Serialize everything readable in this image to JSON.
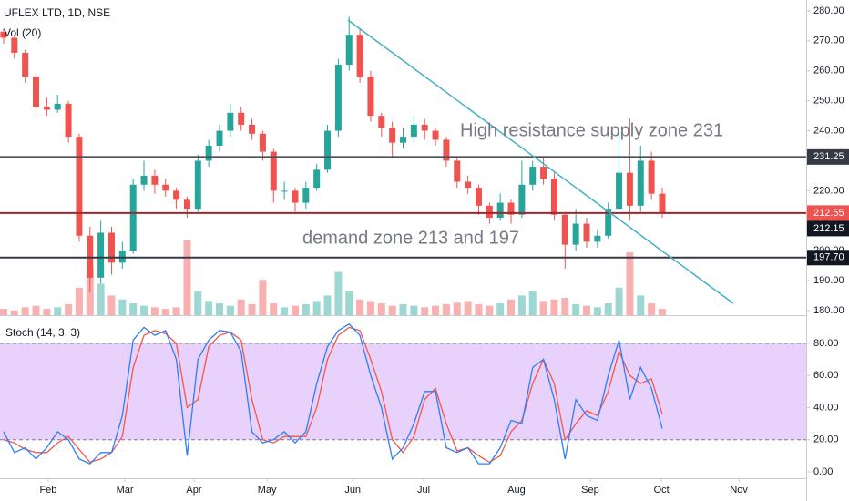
{
  "chart_data": [
    {
      "type": "candlestick",
      "title": "UFLEX LTD, 1D, NSE",
      "subtitle": "Vol (20)",
      "annotations": [
        "High resistance supply zone 231",
        "demand zone 213 and 197"
      ],
      "up_color": "#26a69a",
      "down_color": "#ef5350",
      "x": [
        1,
        4,
        7,
        10,
        13,
        16,
        19,
        22,
        25,
        28,
        31,
        34,
        37,
        40,
        43,
        46,
        49,
        52,
        55,
        58,
        61,
        64,
        67,
        70,
        73,
        76,
        79,
        82,
        85,
        88,
        91,
        94,
        97,
        100,
        103,
        106,
        109,
        112,
        115,
        118,
        121,
        124,
        127,
        130,
        133,
        136,
        139,
        142,
        145,
        148,
        151,
        154,
        157,
        160,
        163,
        166,
        169,
        172,
        175,
        178,
        181,
        184
      ],
      "open": [
        273,
        271,
        266,
        258,
        248,
        247,
        249,
        238,
        205,
        191,
        206,
        196,
        200,
        222,
        225,
        222,
        220,
        217,
        214,
        230,
        235,
        240,
        246,
        242,
        239,
        233,
        220,
        220,
        216,
        221,
        227,
        240,
        262,
        272,
        258,
        245,
        241,
        236,
        238,
        242,
        240,
        237,
        230,
        223,
        221,
        215,
        211,
        216,
        212,
        222,
        228,
        224,
        212,
        202,
        209,
        203,
        205,
        214,
        226,
        215,
        230,
        219
      ],
      "high": [
        274,
        272,
        267,
        259,
        251,
        252,
        250,
        239,
        208,
        210,
        208,
        203,
        224,
        230,
        227,
        224,
        221,
        218,
        232,
        237,
        242,
        249,
        248,
        244,
        240,
        234,
        223,
        221,
        223,
        229,
        242,
        264,
        278,
        274,
        260,
        246,
        243,
        241,
        245,
        244,
        241,
        238,
        231,
        225,
        222,
        216,
        219,
        217,
        230,
        230,
        231,
        226,
        213,
        214,
        211,
        207,
        216,
        240,
        244,
        235,
        233,
        221
      ],
      "low": [
        269,
        264,
        256,
        246,
        245,
        246,
        236,
        203,
        186,
        189,
        192,
        194,
        199,
        220,
        219,
        218,
        214,
        211,
        213,
        228,
        233,
        238,
        240,
        237,
        230,
        216,
        217,
        213,
        214,
        220,
        226,
        238,
        260,
        256,
        243,
        238,
        231,
        234,
        236,
        237,
        235,
        228,
        221,
        219,
        212,
        209,
        210,
        209,
        211,
        220,
        222,
        210,
        194,
        200,
        201,
        201,
        204,
        212,
        210,
        213,
        217,
        211
      ],
      "close": [
        271,
        266,
        258,
        248,
        247,
        249,
        238,
        205,
        191,
        206,
        196,
        200,
        222,
        225,
        222,
        220,
        217,
        214,
        230,
        235,
        240,
        246,
        242,
        239,
        233,
        220,
        220,
        216,
        221,
        227,
        240,
        262,
        272,
        258,
        245,
        241,
        236,
        238,
        242,
        240,
        237,
        230,
        223,
        221,
        215,
        211,
        216,
        212,
        222,
        228,
        224,
        212,
        202,
        209,
        203,
        205,
        214,
        226,
        215,
        230,
        219,
        212.55
      ],
      "volume": [
        8,
        6,
        10,
        12,
        8,
        10,
        14,
        35,
        60,
        40,
        25,
        20,
        15,
        12,
        10,
        8,
        10,
        95,
        30,
        18,
        15,
        12,
        20,
        14,
        45,
        15,
        10,
        12,
        14,
        18,
        25,
        55,
        30,
        20,
        18,
        15,
        12,
        14,
        12,
        10,
        12,
        14,
        16,
        18,
        14,
        12,
        15,
        20,
        25,
        30,
        18,
        20,
        22,
        14,
        12,
        10,
        15,
        35,
        80,
        25,
        15,
        8
      ],
      "xlim": [
        0,
        224
      ],
      "ylim": [
        178.5,
        283.6
      ],
      "yticks": [
        {
          "value": 180,
          "label": "180.00"
        },
        {
          "value": 190,
          "label": "190.00"
        },
        {
          "value": 200,
          "label": "200.00"
        },
        {
          "value": 210,
          "label": "210.00"
        },
        {
          "value": 220,
          "label": "220.00"
        },
        {
          "value": 230,
          "label": "230.00"
        },
        {
          "value": 240,
          "label": "240.00"
        },
        {
          "value": 250,
          "label": "250.00"
        },
        {
          "value": 260,
          "label": "260.00"
        },
        {
          "value": 270,
          "label": "270.00"
        },
        {
          "value": 280,
          "label": "280.00"
        }
      ],
      "hlines": [
        {
          "value": 231.25,
          "color": "#4a4e59",
          "box_color": "#363a45",
          "line": true
        },
        {
          "value": 212.55,
          "color": "#a1262f",
          "box_color": "#ef5350",
          "line": true
        },
        {
          "value": 212.15,
          "color": "#131722",
          "box_color": "#131722",
          "line": false
        },
        {
          "value": 197.7,
          "label": "197.70",
          "color": "#363a45",
          "box_color": "#131722",
          "line": true
        }
      ]
    },
    {
      "type": "line",
      "title": "Stoch (14, 3, 3)",
      "x": [
        1,
        4,
        7,
        10,
        13,
        16,
        19,
        22,
        25,
        28,
        31,
        34,
        37,
        40,
        43,
        46,
        49,
        52,
        55,
        58,
        61,
        64,
        67,
        70,
        73,
        76,
        79,
        82,
        85,
        88,
        91,
        94,
        97,
        100,
        103,
        106,
        109,
        112,
        115,
        118,
        121,
        124,
        127,
        130,
        133,
        136,
        139,
        142,
        145,
        148,
        151,
        154,
        157,
        160,
        163,
        166,
        169,
        172,
        175,
        178,
        181,
        184
      ],
      "series": [
        {
          "color": "#f2584a",
          "values": [
            20,
            18,
            14,
            12,
            12,
            18,
            22,
            14,
            6,
            8,
            12,
            22,
            65,
            85,
            88,
            86,
            80,
            40,
            45,
            78,
            85,
            87,
            82,
            45,
            20,
            18,
            22,
            22,
            22,
            40,
            70,
            85,
            90,
            88,
            70,
            50,
            20,
            12,
            22,
            45,
            52,
            30,
            13,
            15,
            10,
            6,
            10,
            25,
            32,
            55,
            70,
            55,
            20,
            30,
            38,
            35,
            50,
            75,
            60,
            55,
            58,
            36
          ]
        },
        {
          "color": "#2d7ef7",
          "values": [
            25,
            12,
            15,
            8,
            15,
            25,
            20,
            8,
            5,
            12,
            12,
            35,
            82,
            90,
            85,
            88,
            70,
            10,
            70,
            82,
            88,
            87,
            75,
            25,
            18,
            20,
            25,
            18,
            25,
            55,
            78,
            88,
            92,
            85,
            60,
            40,
            8,
            15,
            30,
            50,
            50,
            15,
            12,
            15,
            5,
            5,
            15,
            32,
            30,
            65,
            70,
            45,
            8,
            45,
            35,
            32,
            60,
            82,
            45,
            65,
            52,
            27
          ]
        }
      ],
      "band": {
        "lower": 20,
        "upper": 80,
        "color": "#e6ccfa"
      },
      "xlim": [
        0,
        224
      ],
      "ylim": [
        -4,
        97
      ],
      "yticks": [
        {
          "value": 0,
          "label": "0.00"
        },
        {
          "value": 20,
          "label": "20.00"
        },
        {
          "value": 40,
          "label": "40.00"
        },
        {
          "value": 60,
          "label": "60.00"
        },
        {
          "value": 80,
          "label": "80.00"
        }
      ],
      "xticks": [
        {
          "value": 13.4,
          "label": "Feb"
        },
        {
          "value": 34.7,
          "label": "Mar"
        },
        {
          "value": 53.9,
          "label": "Apr"
        },
        {
          "value": 74.2,
          "label": "May"
        },
        {
          "value": 98,
          "label": "Jun"
        },
        {
          "value": 117.7,
          "label": "Jul"
        },
        {
          "value": 143.5,
          "label": "Aug"
        },
        {
          "value": 164,
          "label": "Sep"
        },
        {
          "value": 183.8,
          "label": "Oct"
        },
        {
          "value": 205.3,
          "label": "Nov"
        }
      ]
    }
  ]
}
